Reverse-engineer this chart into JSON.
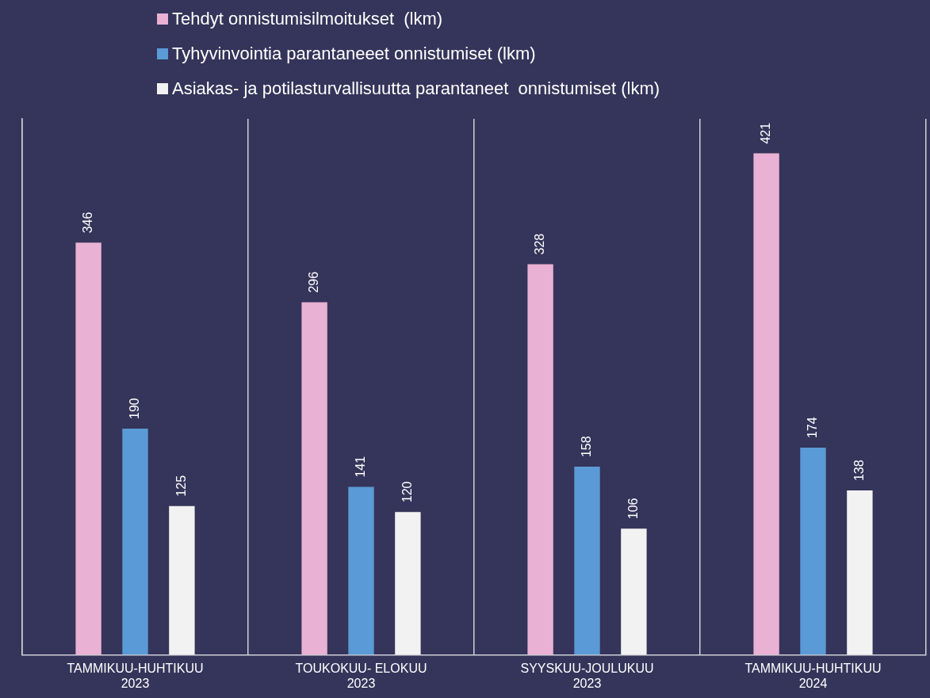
{
  "chart_data": {
    "type": "bar",
    "categories": [
      "TAMMIKUU-HUHTIKUU 2023",
      "TOUKOKUU- ELOKUU 2023",
      "SYYSKUU-JOULUKUU 2023",
      "TAMMIKUU-HUHTIKUU 2024"
    ],
    "series": [
      {
        "name": "Tehdyt onnistumisilmoitukset  (lkm)",
        "color": "#e9b1d3",
        "values": [
          346,
          296,
          328,
          421
        ]
      },
      {
        "name": "Tyhyvinvointia parantaneeet onnistumiset (lkm)",
        "color": "#5a9ad6",
        "values": [
          190,
          141,
          158,
          174
        ]
      },
      {
        "name": "Asiakas- ja potilasturvallisuutta parantaneet  onnistumiset (lkm)",
        "color": "#f2f2f2",
        "values": [
          125,
          120,
          106,
          138
        ]
      }
    ],
    "data_labels": true,
    "grid": "x",
    "legend": "top",
    "tick_labels": "x",
    "relative": false
  }
}
